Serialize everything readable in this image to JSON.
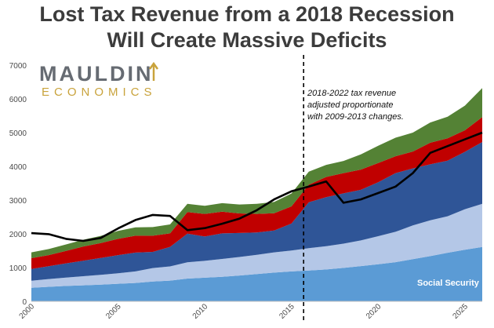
{
  "chart_data": {
    "type": "area",
    "title_line1": "Lost Tax Revenue from a 2018 Recession",
    "title_line2": "Will Create Massive Deficits",
    "x": [
      2000,
      2001,
      2002,
      2003,
      2004,
      2005,
      2006,
      2007,
      2008,
      2009,
      2010,
      2011,
      2012,
      2013,
      2014,
      2015,
      2016,
      2017,
      2018,
      2019,
      2020,
      2021,
      2022,
      2023,
      2024,
      2025,
      2026
    ],
    "ylim": [
      0,
      7000
    ],
    "xlim": [
      2000,
      2026
    ],
    "yticks": [
      "0",
      "1000",
      "2000",
      "3000",
      "4000",
      "5000",
      "6000",
      "7000"
    ],
    "ytick_values": [
      0,
      1000,
      2000,
      3000,
      4000,
      5000,
      6000,
      7000
    ],
    "xticks": [
      "2000",
      "2005",
      "2010",
      "2015",
      "2020",
      "2025"
    ],
    "xtick_values": [
      2000,
      2005,
      2010,
      2015,
      2020,
      2025
    ],
    "series_stacked": [
      {
        "name": "Social Security",
        "color": "#5b9bd5",
        "values": [
          400,
          430,
          455,
          475,
          495,
          520,
          545,
          585,
          615,
          675,
          700,
          725,
          765,
          810,
          850,
          885,
          915,
          945,
          990,
          1045,
          1100,
          1160,
          1250,
          1340,
          1440,
          1530,
          1610
        ]
      },
      {
        "name": "",
        "color": "#b4c7e7",
        "values": [
          210,
          230,
          250,
          270,
          290,
          310,
          340,
          400,
          420,
          480,
          500,
          530,
          550,
          570,
          600,
          620,
          660,
          690,
          720,
          760,
          830,
          900,
          1000,
          1060,
          1080,
          1200,
          1280
        ]
      },
      {
        "name": "",
        "color": "#2f5597",
        "values": [
          350,
          380,
          420,
          460,
          500,
          540,
          560,
          480,
          580,
          850,
          720,
          760,
          710,
          660,
          650,
          800,
          1360,
          1450,
          1490,
          1500,
          1600,
          1740,
          1690,
          1660,
          1650,
          1700,
          1830
        ]
      },
      {
        "name": "",
        "color": "#c00000",
        "values": [
          320,
          330,
          370,
          420,
          440,
          480,
          500,
          480,
          400,
          640,
          670,
          640,
          580,
          550,
          510,
          510,
          520,
          600,
          600,
          600,
          570,
          500,
          500,
          640,
          660,
          640,
          740
        ]
      },
      {
        "name": "",
        "color": "#548235",
        "values": [
          170,
          180,
          190,
          200,
          215,
          235,
          245,
          255,
          265,
          245,
          240,
          255,
          265,
          300,
          335,
          380,
          390,
          360,
          360,
          450,
          510,
          550,
          560,
          600,
          640,
          730,
          860
        ]
      }
    ],
    "line_series": {
      "name": "",
      "color": "#000000",
      "values": [
        2020,
        1990,
        1850,
        1790,
        1880,
        2160,
        2410,
        2560,
        2530,
        2110,
        2170,
        2300,
        2450,
        2700,
        3020,
        3260,
        3400,
        3550,
        2920,
        3020,
        3210,
        3400,
        3800,
        4400,
        4600,
        4800,
        5000
      ]
    },
    "vline_x": 2015.7,
    "annotation_lines": [
      "2018-2022 tax revenue",
      "adjusted proportionate",
      "with 2009-2013 changes."
    ],
    "series_label": "Social Security"
  },
  "logo": {
    "line1": "MAULDIN",
    "line2": "ECONOMICS"
  },
  "colors": {
    "social_security": "#5b9bd5",
    "light_blue": "#b4c7e7",
    "dark_blue": "#2f5597",
    "red": "#c00000",
    "green": "#548235",
    "line": "#000000",
    "logo_gray": "#666b72",
    "logo_gold": "#c9a33c"
  }
}
